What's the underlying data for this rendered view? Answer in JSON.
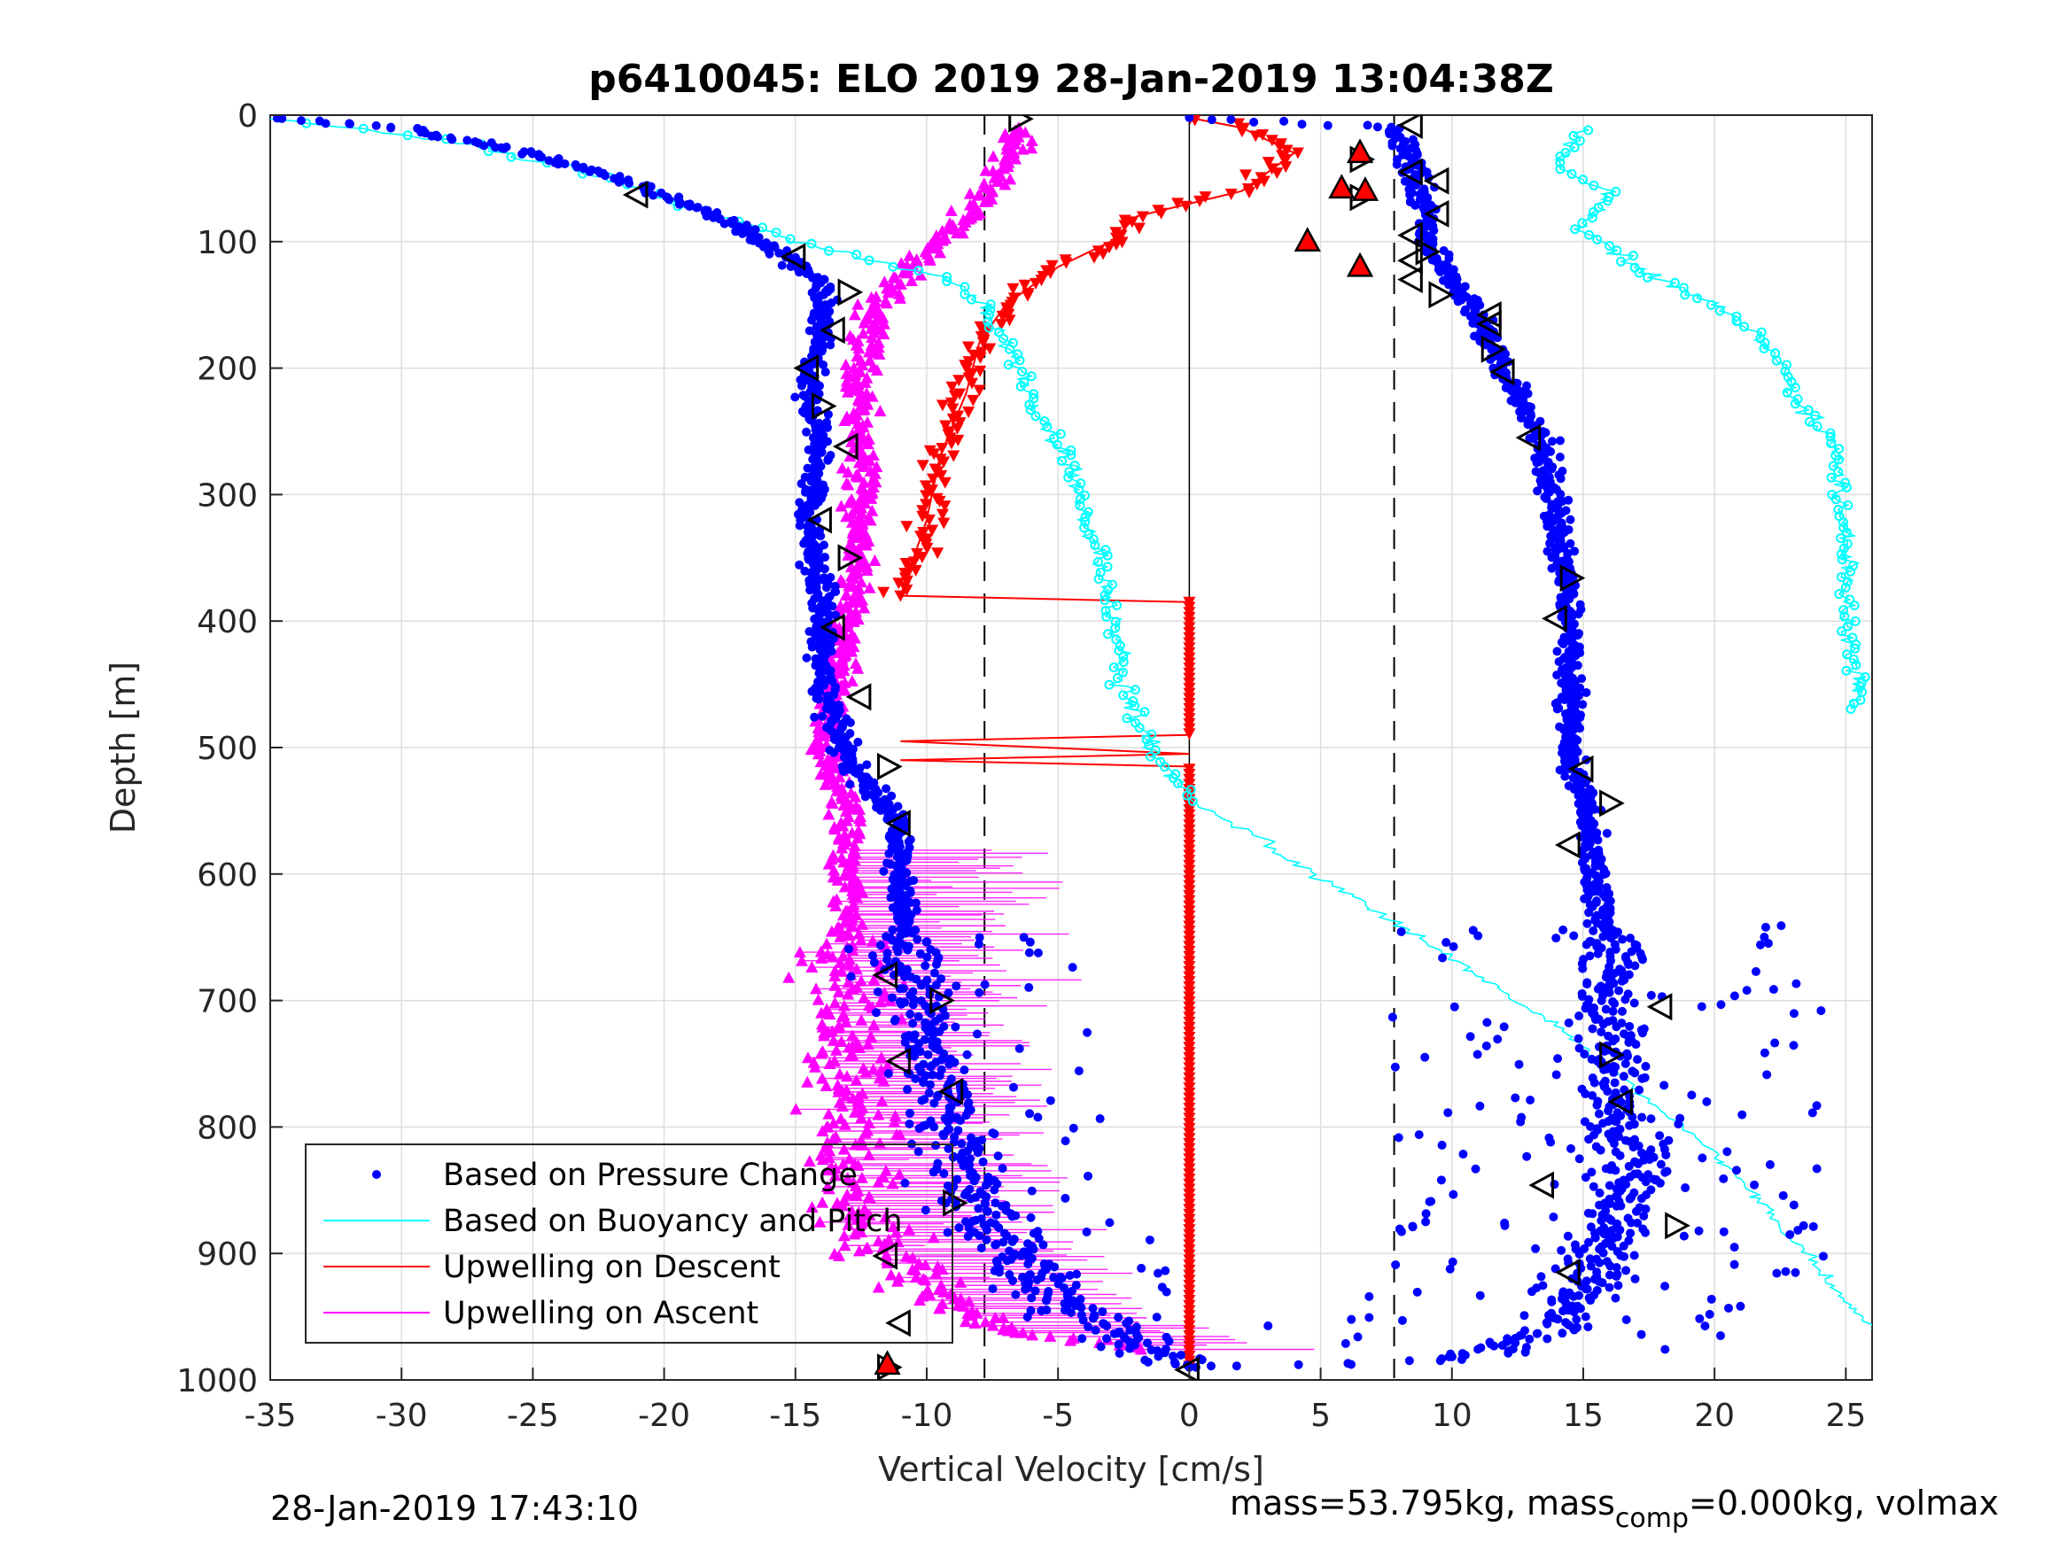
{
  "chart_data": {
    "type": "scatter",
    "title": "p6410045: ELO 2019 28-Jan-2019 13:04:38Z",
    "xlabel": "Vertical Velocity [cm/s]",
    "ylabel": "Depth [m]",
    "xlim": [
      -35,
      26
    ],
    "ylim": [
      0,
      1000
    ],
    "y_reversed": true,
    "grid": true,
    "x_ticks": [
      "-35",
      "-30",
      "-25",
      "-20",
      "-15",
      "-10",
      "-5",
      "0",
      "5",
      "10",
      "15",
      "20",
      "25"
    ],
    "y_ticks": [
      "0",
      "100",
      "200",
      "300",
      "400",
      "500",
      "600",
      "700",
      "800",
      "900",
      "1000"
    ],
    "dashed_reference_lines_x": [
      -7.8,
      7.8
    ],
    "zero_line_x": 0,
    "legend_position": "bottom-left",
    "series": [
      {
        "name": "Based on Pressure Change",
        "color": "#0000ff",
        "marker": "dot",
        "descent_profile": [
          [
            -35,
            2
          ],
          [
            -30,
            10
          ],
          [
            -25,
            30
          ],
          [
            -21,
            55
          ],
          [
            -18,
            80
          ],
          [
            -16,
            105
          ],
          [
            -14,
            130
          ],
          [
            -14,
            170
          ],
          [
            -14.5,
            220
          ],
          [
            -14,
            260
          ],
          [
            -14.5,
            320
          ],
          [
            -14,
            380
          ],
          [
            -14,
            450
          ],
          [
            -13,
            510
          ],
          [
            -11,
            560
          ],
          [
            -11,
            620
          ],
          [
            -10.5,
            680
          ],
          [
            -10,
            740
          ],
          [
            -9,
            800
          ],
          [
            -8,
            860
          ],
          [
            -6,
            920
          ],
          [
            -3,
            960
          ],
          [
            0,
            990
          ]
        ],
        "ascent_profile": [
          [
            0,
            990
          ],
          [
            10,
            985
          ],
          [
            14,
            960
          ],
          [
            16,
            900
          ],
          [
            17,
            850
          ],
          [
            16,
            790
          ],
          [
            16,
            720
          ],
          [
            16,
            660
          ],
          [
            15.5,
            600
          ],
          [
            15,
            540
          ],
          [
            14.5,
            500
          ],
          [
            14.5,
            440
          ],
          [
            14.5,
            380
          ],
          [
            14,
            320
          ],
          [
            13.5,
            260
          ],
          [
            12,
            200
          ],
          [
            11,
            160
          ],
          [
            10,
            130
          ],
          [
            9,
            100
          ],
          [
            9,
            70
          ],
          [
            8.5,
            40
          ],
          [
            8,
            10
          ],
          [
            0,
            2
          ]
        ]
      },
      {
        "name": "Based on Buoyancy and Pitch",
        "color": "#00ffff",
        "marker": "circle",
        "descent_profile": [
          [
            -35,
            2
          ],
          [
            -28,
            20
          ],
          [
            -22,
            50
          ],
          [
            -18,
            80
          ],
          [
            -15,
            100
          ],
          [
            -12,
            115
          ],
          [
            -9,
            130
          ],
          [
            -8,
            150
          ],
          [
            -7,
            180
          ],
          [
            -6,
            220
          ],
          [
            -4.5,
            280
          ],
          [
            -3.5,
            340
          ],
          [
            -3,
            390
          ],
          [
            -2.5,
            450
          ],
          [
            -1.5,
            500
          ],
          [
            0,
            540
          ],
          [
            8,
            640
          ],
          [
            14,
            720
          ],
          [
            20,
            820
          ],
          [
            26,
            960
          ]
        ],
        "ascent_profile": [
          [
            25.5,
            470
          ],
          [
            25,
            400
          ],
          [
            25,
            330
          ],
          [
            24.5,
            260
          ],
          [
            23,
            220
          ],
          [
            22,
            180
          ],
          [
            20,
            150
          ],
          [
            17,
            120
          ],
          [
            15,
            90
          ],
          [
            16,
            60
          ],
          [
            14,
            40
          ],
          [
            15,
            10
          ]
        ]
      },
      {
        "name": "Upwelling on Descent",
        "color": "#ff0000",
        "marker": "triangle-down",
        "descent_profile": [
          [
            0,
            2
          ],
          [
            2,
            10
          ],
          [
            4,
            30
          ],
          [
            2,
            60
          ],
          [
            -2,
            80
          ],
          [
            -3,
            100
          ],
          [
            -5,
            120
          ],
          [
            -7,
            150
          ],
          [
            -8,
            180
          ],
          [
            -8.5,
            220
          ],
          [
            -9.5,
            270
          ],
          [
            -10,
            320
          ],
          [
            -10.5,
            350
          ],
          [
            -11,
            380
          ],
          [
            0,
            385
          ],
          [
            0,
            490
          ],
          [
            -11,
            495
          ],
          [
            0,
            505
          ],
          [
            -11,
            510
          ],
          [
            0,
            515
          ],
          [
            0,
            990
          ]
        ]
      },
      {
        "name": "Upwelling on Ascent",
        "color": "#ff00ff",
        "marker": "triangle-up",
        "ascent_profile": [
          [
            -2,
            975
          ],
          [
            -7,
            960
          ],
          [
            -10,
            930
          ],
          [
            -12,
            890
          ],
          [
            -13,
            850
          ],
          [
            -13,
            800
          ],
          [
            -13,
            750
          ],
          [
            -13,
            700
          ],
          [
            -13,
            650
          ],
          [
            -13,
            600
          ],
          [
            -13,
            550
          ],
          [
            -14,
            500
          ],
          [
            -13.5,
            450
          ],
          [
            -13,
            400
          ],
          [
            -12.5,
            350
          ],
          [
            -12.5,
            300
          ],
          [
            -12.5,
            250
          ],
          [
            -12.5,
            200
          ],
          [
            -12,
            150
          ],
          [
            -10,
            110
          ],
          [
            -8,
            70
          ],
          [
            -7,
            40
          ],
          [
            -6.5,
            10
          ]
        ]
      }
    ],
    "markers_black_triangles": [
      [
        -6.5,
        3
      ],
      [
        -21,
        63
      ],
      [
        -15,
        112
      ],
      [
        -13,
        140
      ],
      [
        -13.5,
        170
      ],
      [
        -14.5,
        200
      ],
      [
        -14,
        230
      ],
      [
        -13,
        262
      ],
      [
        -14,
        320
      ],
      [
        -13,
        350
      ],
      [
        -13.5,
        405
      ],
      [
        -12.5,
        460
      ],
      [
        -11.5,
        515
      ],
      [
        -11,
        560
      ],
      [
        -11.5,
        680
      ],
      [
        -9.5,
        700
      ],
      [
        -11,
        748
      ],
      [
        -9,
        772
      ],
      [
        -9,
        860
      ],
      [
        -11.5,
        902
      ],
      [
        -11,
        955
      ],
      [
        -11.5,
        990
      ],
      [
        0,
        992
      ],
      [
        8.5,
        8
      ],
      [
        6.5,
        35
      ],
      [
        8.5,
        45
      ],
      [
        9.5,
        52
      ],
      [
        6.5,
        65
      ],
      [
        9.5,
        78
      ],
      [
        8.5,
        95
      ],
      [
        9,
        108
      ],
      [
        8.5,
        115
      ],
      [
        8.5,
        130
      ],
      [
        9.5,
        142
      ],
      [
        11.5,
        158
      ],
      [
        11.5,
        165
      ],
      [
        11.5,
        185
      ],
      [
        12,
        203
      ],
      [
        13,
        255
      ],
      [
        14.5,
        366
      ],
      [
        14,
        398
      ],
      [
        15,
        517
      ],
      [
        16,
        544
      ],
      [
        14.5,
        577
      ],
      [
        18,
        705
      ],
      [
        16,
        743
      ],
      [
        16.5,
        780
      ],
      [
        13.5,
        846
      ],
      [
        18.5,
        878
      ],
      [
        14.5,
        915
      ]
    ],
    "markers_red_triangles": [
      [
        4.5,
        100
      ],
      [
        5.8,
        58
      ],
      [
        6.5,
        120
      ],
      [
        6.5,
        30
      ],
      [
        6.7,
        60
      ],
      [
        -11.5,
        988
      ]
    ]
  },
  "footer": {
    "left_timestamp": "28-Jan-2019 17:43:10",
    "mass_text_a": "mass=53.795kg, mass",
    "mass_sub": "comp",
    "mass_text_b": "=0.000kg, volmax"
  }
}
